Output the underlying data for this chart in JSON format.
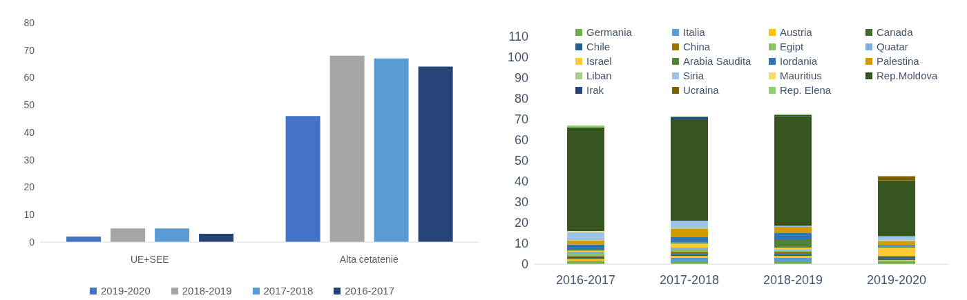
{
  "chart_data": [
    {
      "type": "bar",
      "categories": [
        "UE+SEE",
        "Alta cetatenie"
      ],
      "ylim": [
        0,
        80
      ],
      "yticks": [
        0,
        10,
        20,
        30,
        40,
        50,
        60,
        70,
        80
      ],
      "legend": "bottom",
      "series": [
        {
          "name": "2019-2020",
          "color": "#4472c4",
          "values": [
            2,
            46
          ]
        },
        {
          "name": "2018-2019",
          "color": "#a5a5a5",
          "values": [
            5,
            68
          ]
        },
        {
          "name": "2017-2018",
          "color": "#5b9bd5",
          "values": [
            5,
            67
          ]
        },
        {
          "name": "2016-2017",
          "color": "#264478",
          "values": [
            3,
            64
          ]
        }
      ]
    },
    {
      "type": "bar",
      "stacked": true,
      "categories": [
        "2016-2017",
        "2017-2018",
        "2018-2019",
        "2019-2020"
      ],
      "ylim": [
        0,
        110
      ],
      "yticks": [
        0,
        10,
        20,
        30,
        40,
        50,
        60,
        70,
        80,
        90,
        100,
        110
      ],
      "legend": "top",
      "series": [
        {
          "name": "Germania",
          "color": "#70ad47",
          "values": [
            1,
            1,
            1,
            1
          ]
        },
        {
          "name": "Italia",
          "color": "#5b9bd5",
          "values": [
            0.5,
            2,
            2,
            0.5
          ]
        },
        {
          "name": "Austria",
          "color": "#ffc000",
          "values": [
            1,
            1,
            1,
            0.5
          ]
        },
        {
          "name": "Canada",
          "color": "#43682b",
          "values": [
            0.5,
            0.5,
            0.5,
            0.5
          ]
        },
        {
          "name": "Chile",
          "color": "#255e91",
          "values": [
            0.5,
            0.5,
            0.5,
            1
          ]
        },
        {
          "name": "China",
          "color": "#9e7000",
          "values": [
            0.5,
            1,
            1,
            0.5
          ]
        },
        {
          "name": "Egipt",
          "color": "#8cc168",
          "values": [
            1,
            1,
            0.5,
            0
          ]
        },
        {
          "name": "Quatar",
          "color": "#7cafdd",
          "values": [
            1,
            1,
            0.5,
            0
          ]
        },
        {
          "name": "Israel",
          "color": "#ffcd33",
          "values": [
            0.5,
            2,
            1,
            4
          ]
        },
        {
          "name": "Arabia Saudita",
          "color": "#548235",
          "values": [
            0.5,
            0.5,
            4,
            0.5
          ]
        },
        {
          "name": "Iordania",
          "color": "#2e75b6",
          "values": [
            2.5,
            2.5,
            3,
            0.5
          ]
        },
        {
          "name": "Palestina",
          "color": "#d29b00",
          "values": [
            2,
            4,
            3,
            2
          ]
        },
        {
          "name": "Liban",
          "color": "#a9d18e",
          "values": [
            0.5,
            0.5,
            0,
            0.5
          ]
        },
        {
          "name": "Siria",
          "color": "#9dc3e6",
          "values": [
            3.5,
            3.5,
            0.5,
            2
          ]
        },
        {
          "name": "Mauritius",
          "color": "#ffd966",
          "values": [
            0.5,
            0,
            0,
            0
          ]
        },
        {
          "name": "Rep.Moldova",
          "color": "#37561f",
          "values": [
            50,
            49,
            53,
            27
          ]
        },
        {
          "name": "Irak",
          "color": "#264478",
          "values": [
            0,
            1,
            0.5,
            0
          ]
        },
        {
          "name": "Ucraina",
          "color": "#7f6000",
          "values": [
            0,
            0,
            0,
            2
          ]
        },
        {
          "name": "Rep. Elena",
          "color": "#8fd16e",
          "values": [
            1,
            0.5,
            0.5,
            0
          ]
        }
      ]
    }
  ]
}
